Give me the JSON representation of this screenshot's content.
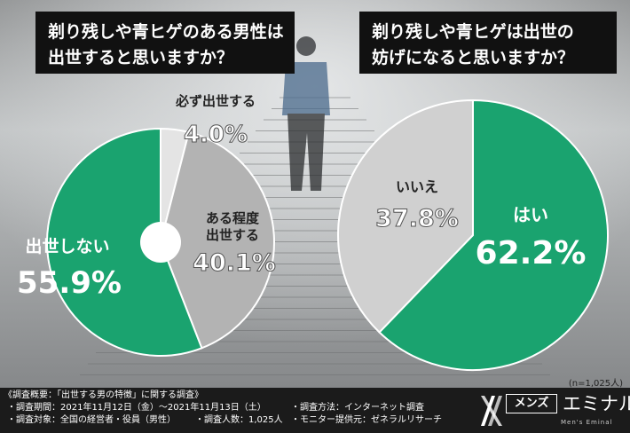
{
  "questions": {
    "q1_line1": "剃り残しや青ヒゲのある男性は",
    "q1_line2": "出世すると思いますか？",
    "q2_line1": "剃り残しや青ヒゲは出世の",
    "q2_line2": "妨げになると思いますか？"
  },
  "chart_data": [
    {
      "type": "pie",
      "title": "剃り残しや青ヒゲのある男性は出世すると思いますか？",
      "slices": [
        {
          "label": "必ず出世する",
          "value": 4.0,
          "display": "4.0%",
          "color": "#e4e4e4"
        },
        {
          "label": "ある程度出世する",
          "value": 40.1,
          "display": "40.1%",
          "color": "#b3b3b3"
        },
        {
          "label": "出世しない",
          "value": 55.9,
          "display": "55.9%",
          "color": "#1aa36f"
        }
      ]
    },
    {
      "type": "pie",
      "title": "剃り残しや青ヒゲは出世の妨げになると思いますか？",
      "slices": [
        {
          "label": "はい",
          "value": 62.2,
          "display": "62.2%",
          "color": "#1aa36f"
        },
        {
          "label": "いいえ",
          "value": 37.8,
          "display": "37.8%",
          "color": "#d0d0d0"
        }
      ]
    }
  ],
  "labels": {
    "c1_must_a": "必ず出世する",
    "c1_must_b": "4.0%",
    "c1_some_a": "ある程度",
    "c1_some_b": "出世する",
    "c1_some_c": "40.1%",
    "c1_no_a": "出世しない",
    "c1_no_b": "55.9%",
    "c2_yes_a": "はい",
    "c2_yes_b": "62.2%",
    "c2_no_a": "いいえ",
    "c2_no_b": "37.8%"
  },
  "n_note": "(n=1,025人)",
  "footer": {
    "heading": "《調査概要：「出世する男の特徴」に関する調査》",
    "period": "・調査期間：2021年11月12日（金）～2021年11月13日（土）",
    "method": "・調査方法：インターネット調査",
    "target": "・調査対象：全国の経営者・役員（男性）",
    "count": "・調査人数：1,025人",
    "provider": "・モニター提供元：ゼネラルリサーチ"
  },
  "logo": {
    "box": "メンズ",
    "name": "エミナル",
    "sub": "Men's Eminal"
  }
}
